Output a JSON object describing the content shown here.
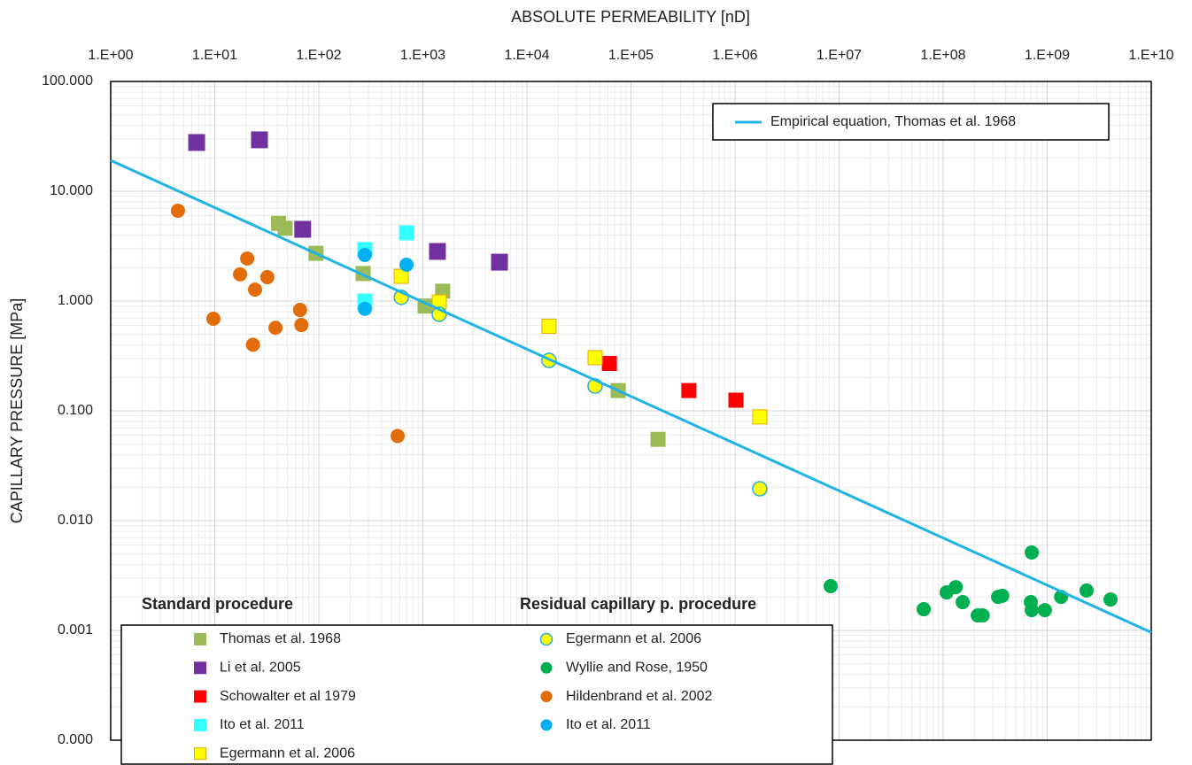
{
  "chart_data": {
    "type": "scatter",
    "x_label": "ABSOLUTE PERMEABILITY [nD]",
    "y_label": "CAPILLARY PRESSURE [MPa]",
    "xscale": "log",
    "yscale": "log",
    "grid": true,
    "minor_grid": true,
    "xlim": [
      1,
      10000000000
    ],
    "ylim": [
      0.0001,
      100
    ],
    "xticks": [
      {
        "value": 1,
        "label": "1.E+00"
      },
      {
        "value": 10,
        "label": "1.E+01"
      },
      {
        "value": 100,
        "label": "1.E+02"
      },
      {
        "value": 1000,
        "label": "1.E+03"
      },
      {
        "value": 10000,
        "label": "1.E+04"
      },
      {
        "value": 100000,
        "label": "1.E+05"
      },
      {
        "value": 1000000,
        "label": "1.E+06"
      },
      {
        "value": 10000000,
        "label": "1.E+07"
      },
      {
        "value": 100000000,
        "label": "1.E+08"
      },
      {
        "value": 1000000000,
        "label": "1.E+09"
      },
      {
        "value": 10000000000,
        "label": "1.E+10"
      }
    ],
    "yticks": [
      {
        "value": 0.0001,
        "label": "0.000"
      },
      {
        "value": 0.001,
        "label": "0.001"
      },
      {
        "value": 0.01,
        "label": "0.010"
      },
      {
        "value": 0.1,
        "label": "0.100"
      },
      {
        "value": 1,
        "label": "1.000"
      },
      {
        "value": 10,
        "label": "10.000"
      },
      {
        "value": 100,
        "label": "100.000"
      }
    ],
    "annotations": [
      {
        "text": "Standard procedure"
      },
      {
        "text": "Residual capillary p. procedure"
      }
    ],
    "series": [
      {
        "name": "Thomas et al. 1968",
        "marker": "square",
        "color": "#9bbb59",
        "x": [
          41,
          47.5,
          94,
          267,
          1550,
          1050,
          75300,
          182000
        ],
        "values": [
          5.1,
          4.6,
          2.72,
          1.78,
          1.23,
          0.9,
          0.153,
          0.055
        ]
      },
      {
        "name": "Li et al. 2005",
        "marker": "square",
        "color": "#7030a0",
        "x": [
          6.7,
          26.9,
          70,
          1380,
          5450
        ],
        "values": [
          27.8,
          29.4,
          4.5,
          2.83,
          2.26
        ]
      },
      {
        "name": "Schowalter et al 1979",
        "marker": "square",
        "color": "#ff0000",
        "x": [
          62000,
          360000,
          1020000
        ],
        "values": [
          0.27,
          0.153,
          0.125
        ]
      },
      {
        "name": "Ito et al. 2011",
        "marker": "square",
        "color": "#33ffff",
        "x": [
          277,
          697,
          277
        ],
        "values": [
          2.94,
          4.18,
          1.0
        ]
      },
      {
        "name": "Egermann et al. 2006",
        "marker": "square",
        "color": "#ffff00",
        "edgecolor": "#e8a800",
        "x": [
          620,
          1436,
          16300,
          45200,
          1730000
        ],
        "values": [
          1.68,
          0.98,
          0.59,
          0.305,
          0.088
        ]
      },
      {
        "name": "Egermann et al. 2006",
        "marker": "circle",
        "color": "#ffff00",
        "edgecolor": "#29abe2",
        "x": [
          620,
          1436,
          16300,
          45200,
          1730000
        ],
        "values": [
          1.08,
          0.757,
          0.288,
          0.168,
          0.0195
        ]
      },
      {
        "name": "Wyllie and Rose, 1950",
        "marker": "circle",
        "color": "#00b050",
        "x": [
          8300000,
          65000000,
          108000000,
          132000000,
          154000000,
          215000000,
          240000000,
          337000000,
          370000000,
          696000000,
          710000000,
          710000000,
          950000000,
          1360000000,
          2390000000,
          4060000000
        ],
        "values": [
          0.00253,
          0.00156,
          0.00222,
          0.00248,
          0.00181,
          0.00137,
          0.00137,
          0.00202,
          0.00207,
          0.00181,
          0.00153,
          0.00513,
          0.00153,
          0.00202,
          0.00231,
          0.00191
        ]
      },
      {
        "name": "Hildenbrand et al. 2002",
        "marker": "circle",
        "color": "#e36c0a",
        "x": [
          4.43,
          9.7,
          17.5,
          20.5,
          24.4,
          23.3,
          32,
          38.3,
          66,
          68,
          572
        ],
        "values": [
          6.65,
          0.69,
          1.75,
          2.44,
          1.27,
          0.4,
          1.65,
          0.57,
          0.83,
          0.605,
          0.059
        ]
      },
      {
        "name": "Ito et al. 2011",
        "marker": "circle",
        "color": "#00b0f0",
        "x": [
          697,
          277,
          277
        ],
        "values": [
          2.14,
          2.63,
          0.85
        ]
      },
      {
        "name": "Empirical equation, Thomas et al. 1968",
        "marker": "line",
        "color": "#1fb3e8",
        "x": [
          1,
          10000000000
        ],
        "values": [
          19.1,
          0.00096
        ]
      }
    ]
  }
}
